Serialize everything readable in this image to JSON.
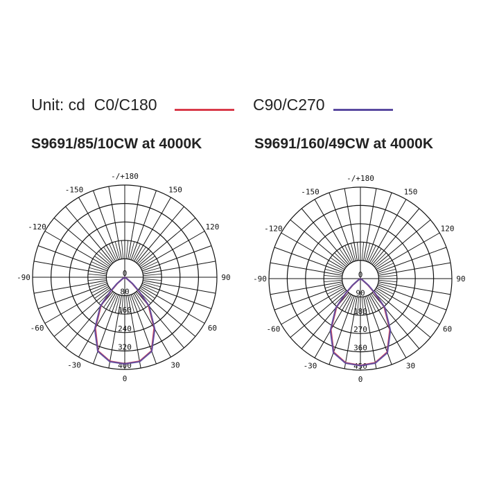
{
  "legend": {
    "unit": "Unit: cd",
    "c0_label": "C0/C180",
    "c90_label": "C90/C270",
    "c0_color": "#d93a4a",
    "c90_color": "#5a4aa0"
  },
  "chart_data": [
    {
      "type": "polar",
      "title": "S9691/85/10CW at 4000K",
      "unit": "cd",
      "angle_labels": [
        "-/+180",
        "150",
        "120",
        "90",
        "60",
        "30",
        "0",
        "-30",
        "-60",
        "-90",
        "-120",
        "-150"
      ],
      "radial_ticks": [
        0,
        80,
        160,
        240,
        320,
        400
      ],
      "rmax": 400,
      "angles": [
        -60,
        -55,
        -50,
        -45,
        -40,
        -30,
        -20,
        -10,
        0,
        10,
        20,
        30,
        40,
        45,
        50,
        55,
        60
      ],
      "series": [
        {
          "name": "C0/C180",
          "color": "#d93a4a",
          "values": [
            0,
            12,
            42,
            88,
            160,
            255,
            340,
            370,
            375,
            370,
            340,
            255,
            160,
            88,
            42,
            12,
            0
          ]
        },
        {
          "name": "C90/C270",
          "color": "#5a4aa0",
          "values": [
            0,
            14,
            46,
            92,
            165,
            260,
            342,
            372,
            376,
            372,
            342,
            260,
            165,
            92,
            46,
            14,
            0
          ]
        }
      ]
    },
    {
      "type": "polar",
      "title": "S9691/160/49CW at 4000K",
      "unit": "cd",
      "angle_labels": [
        "-/+180",
        "150",
        "120",
        "90",
        "60",
        "30",
        "0",
        "-30",
        "-60",
        "-90",
        "-120",
        "-150"
      ],
      "radial_ticks": [
        0,
        90,
        180,
        270,
        360,
        450
      ],
      "rmax": 450,
      "angles": [
        -60,
        -55,
        -50,
        -45,
        -40,
        -30,
        -20,
        -10,
        0,
        10,
        20,
        30,
        40,
        45,
        50,
        55,
        60
      ],
      "series": [
        {
          "name": "C0/C180",
          "color": "#d93a4a",
          "values": [
            0,
            12,
            46,
            98,
            182,
            290,
            385,
            420,
            427,
            420,
            385,
            290,
            182,
            98,
            46,
            12,
            0
          ]
        },
        {
          "name": "C90/C270",
          "color": "#5a4aa0",
          "values": [
            0,
            16,
            52,
            104,
            188,
            295,
            388,
            422,
            428,
            422,
            388,
            295,
            188,
            104,
            52,
            16,
            0
          ]
        }
      ]
    }
  ]
}
